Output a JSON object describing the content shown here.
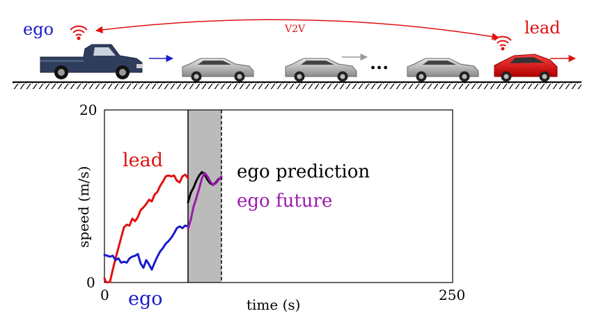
{
  "scene": {
    "ego_label": "ego",
    "lead_label": "lead",
    "v2v_label": "V2V",
    "ellipsis": "...",
    "colors": {
      "ego": "#1a1acc",
      "lead": "#e01010",
      "gray_arrow": "#999999"
    }
  },
  "chart_data": {
    "type": "line",
    "xlabel": "time (s)",
    "ylabel": "speed (m/s)",
    "xlim": [
      0,
      250
    ],
    "ylim": [
      0,
      20
    ],
    "x_ticks": [
      "0",
      "250"
    ],
    "y_ticks": [
      "0",
      "20"
    ],
    "grid": false,
    "legend": "inline",
    "shaded_region": {
      "x": [
        60,
        84
      ],
      "color": "#bbbbbb"
    },
    "series": [
      {
        "name": "lead",
        "color": "#e01010",
        "x": [
          0,
          1,
          2,
          4,
          6,
          8,
          10,
          12,
          14,
          16,
          18,
          20,
          22,
          24,
          26,
          28,
          30,
          32,
          34,
          36,
          38,
          40,
          42,
          44,
          46,
          48,
          50,
          52,
          54,
          56,
          58,
          60
        ],
        "y": [
          0.5,
          0.1,
          0.0,
          0.1,
          1.5,
          2.8,
          4.0,
          5.2,
          6.4,
          6.7,
          6.6,
          7.4,
          7.1,
          7.6,
          8.4,
          8.7,
          9.1,
          9.6,
          9.4,
          10.2,
          10.5,
          11.2,
          11.7,
          12.3,
          12.4,
          12.3,
          12.4,
          11.8,
          11.6,
          12.3,
          12.5,
          12.1
        ]
      },
      {
        "name": "ego",
        "color": "#1a1acc",
        "x": [
          0,
          2,
          4,
          6,
          8,
          10,
          12,
          14,
          16,
          18,
          20,
          22,
          24,
          26,
          28,
          30,
          32,
          34,
          36,
          38,
          40,
          42,
          44,
          46,
          48,
          50,
          52,
          54,
          56,
          58,
          60
        ],
        "y": [
          3.2,
          3.1,
          3.0,
          3.1,
          2.6,
          2.8,
          2.3,
          2.4,
          2.3,
          2.8,
          3.0,
          3.1,
          3.3,
          2.2,
          1.7,
          2.6,
          2.1,
          1.5,
          2.3,
          3.0,
          3.6,
          4.0,
          4.5,
          4.8,
          5.2,
          5.7,
          6.3,
          6.5,
          6.3,
          6.6,
          6.5
        ]
      },
      {
        "name": "ego prediction",
        "color": "#000000",
        "x": [
          60,
          62,
          64,
          66,
          68,
          70,
          72,
          74,
          76,
          78,
          80,
          82,
          84
        ],
        "y": [
          9.3,
          10.4,
          11.0,
          11.8,
          12.4,
          12.8,
          12.5,
          11.9,
          11.5,
          11.3,
          11.6,
          12.0,
          12.1
        ]
      },
      {
        "name": "ego future",
        "color": "#9a1aaa",
        "x": [
          60,
          62,
          64,
          66,
          68,
          70,
          72,
          74,
          76,
          78,
          80,
          82,
          84
        ],
        "y": [
          6.2,
          7.3,
          8.8,
          9.8,
          10.9,
          12.1,
          12.7,
          12.3,
          11.7,
          11.3,
          11.5,
          11.9,
          12.3
        ]
      }
    ]
  }
}
